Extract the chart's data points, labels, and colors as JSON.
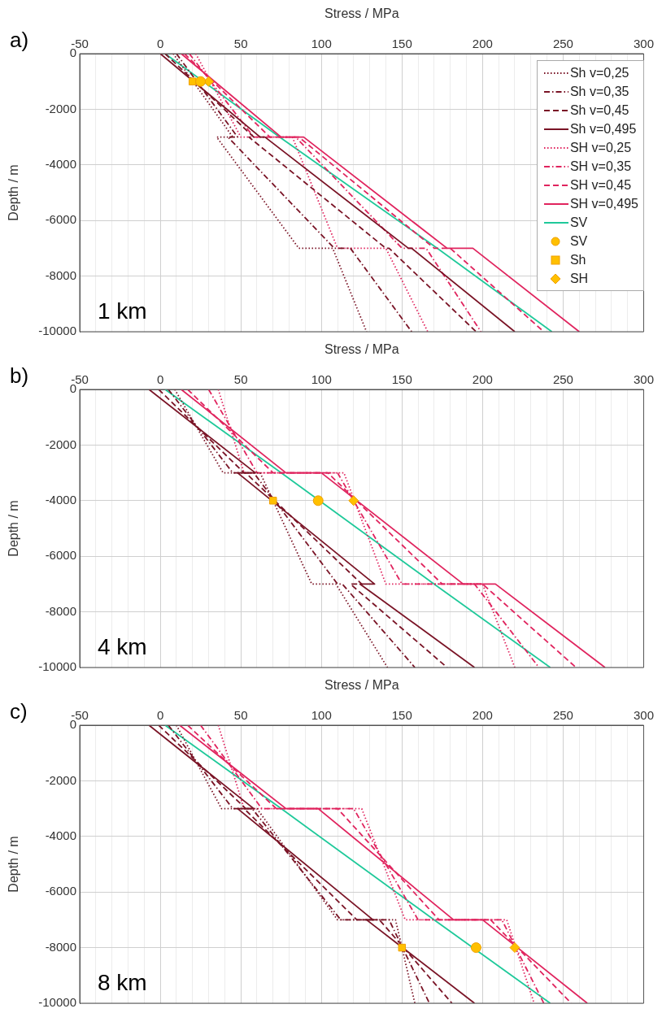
{
  "chart_data": [
    {
      "type": "line",
      "title": "a)",
      "xlabel": "Stress / MPa",
      "ylabel": "Depth / m",
      "annotations": [
        "1 km"
      ],
      "xlim": [
        -50,
        300
      ],
      "ylim": [
        -10000,
        0
      ],
      "xticks": [
        -50,
        {
          "value": -40,
          "label": null
        },
        {
          "value": -30,
          "label": null
        },
        {
          "value": -20,
          "label": null
        },
        {
          "value": -10,
          "label": null
        },
        0,
        {
          "value": 10,
          "label": null
        },
        {
          "value": 20,
          "label": null
        },
        {
          "value": 30,
          "label": null
        },
        {
          "value": 40,
          "label": null
        },
        50,
        {
          "value": 60,
          "label": null
        },
        {
          "value": 70,
          "label": null
        },
        {
          "value": 80,
          "label": null
        },
        {
          "value": 90,
          "label": null
        },
        100,
        {
          "value": 110,
          "label": null
        },
        {
          "value": 120,
          "label": null
        },
        {
          "value": 130,
          "label": null
        },
        {
          "value": 140,
          "label": null
        },
        150,
        {
          "value": 160,
          "label": null
        },
        {
          "value": 170,
          "label": null
        },
        {
          "value": 180,
          "label": null
        },
        {
          "value": 190,
          "label": null
        },
        200,
        {
          "value": 210,
          "label": null
        },
        {
          "value": 220,
          "label": null
        },
        {
          "value": 230,
          "label": null
        },
        {
          "value": 240,
          "label": null
        },
        250,
        {
          "value": 260,
          "label": null
        },
        {
          "value": 270,
          "label": null
        },
        {
          "value": 280,
          "label": null
        },
        {
          "value": 290,
          "label": null
        },
        300
      ],
      "yticks": [
        0,
        -2000,
        -4000,
        -6000,
        -8000,
        -10000
      ],
      "grid": true,
      "legend": "top right",
      "series": [
        {
          "name": "Sh v=0,25",
          "type": "line",
          "color": "#7a1426",
          "line_style": "dotted",
          "x": [
            8,
            45,
            35,
            86,
            107,
            128
          ],
          "values": [
            0,
            -3000,
            -3000,
            -7000,
            -7000,
            -10000
          ]
        },
        {
          "name": "Sh v=0,35",
          "type": "line",
          "color": "#7a1426",
          "line_style": "dashdot",
          "x": [
            10,
            48,
            42,
            108,
            118,
            156
          ],
          "values": [
            0,
            -3000,
            -3000,
            -7000,
            -7000,
            -10000
          ]
        },
        {
          "name": "Sh v=0,45",
          "type": "line",
          "color": "#7a1426",
          "line_style": "dashed",
          "x": [
            3,
            58,
            55,
            140,
            142,
            196
          ],
          "values": [
            0,
            -3000,
            -3000,
            -7000,
            -7000,
            -10000
          ]
        },
        {
          "name": "Sh v=0,495",
          "type": "line",
          "color": "#7a1426",
          "line_style": "solid",
          "x": [
            0,
            62,
            65,
            154,
            156,
            220
          ],
          "values": [
            0,
            -3000,
            -3000,
            -7000,
            -7000,
            -10000
          ]
        },
        {
          "name": "SH v=0,25",
          "type": "line",
          "color": "#e0245e",
          "line_style": "dotted",
          "x": [
            22,
            50,
            82,
            110,
            140,
            166
          ],
          "values": [
            0,
            -3000,
            -3000,
            -7000,
            -7000,
            -10000
          ]
        },
        {
          "name": "SH v=0,35",
          "type": "line",
          "color": "#e0245e",
          "line_style": "dashdot",
          "x": [
            18,
            58,
            84,
            150,
            165,
            199
          ],
          "values": [
            0,
            -3000,
            -3000,
            -7000,
            -7000,
            -10000
          ]
        },
        {
          "name": "SH v=0,45",
          "type": "line",
          "color": "#e0245e",
          "line_style": "dashed",
          "x": [
            15,
            68,
            86,
            170,
            180,
            238
          ],
          "values": [
            0,
            -3000,
            -3000,
            -7000,
            -7000,
            -10000
          ]
        },
        {
          "name": "SH v=0,495",
          "type": "line",
          "color": "#e0245e",
          "line_style": "solid",
          "x": [
            13,
            75,
            89,
            178,
            194,
            260
          ],
          "values": [
            0,
            -3000,
            -3000,
            -7000,
            -7000,
            -10000
          ]
        },
        {
          "name": "SV",
          "type": "line",
          "color": "#1fc99a",
          "line_style": "solid",
          "x": [
            3,
            74,
            172,
            243
          ],
          "values": [
            0,
            -3000,
            -7000,
            -10000
          ]
        },
        {
          "name": "SV",
          "type": "scatter",
          "color": "#ffc000",
          "marker": "circle",
          "x": [
            25
          ],
          "values": [
            -1000
          ]
        },
        {
          "name": "Sh",
          "type": "scatter",
          "color": "#ffc000",
          "marker": "square",
          "x": [
            20
          ],
          "values": [
            -1000
          ]
        },
        {
          "name": "SH",
          "type": "scatter",
          "color": "#ffc000",
          "marker": "diamond",
          "x": [
            30
          ],
          "values": [
            -1000
          ]
        }
      ]
    },
    {
      "type": "line",
      "title": "b)",
      "xlabel": "Stress / MPa",
      "ylabel": "Depth / m",
      "annotations": [
        "4 km"
      ],
      "xlim": [
        -50,
        300
      ],
      "ylim": [
        -10000,
        0
      ],
      "xticks": [
        -50,
        {
          "value": -40,
          "label": null
        },
        {
          "value": -30,
          "label": null
        },
        {
          "value": -20,
          "label": null
        },
        {
          "value": -10,
          "label": null
        },
        0,
        {
          "value": 10,
          "label": null
        },
        {
          "value": 20,
          "label": null
        },
        {
          "value": 30,
          "label": null
        },
        {
          "value": 40,
          "label": null
        },
        50,
        {
          "value": 60,
          "label": null
        },
        {
          "value": 70,
          "label": null
        },
        {
          "value": 80,
          "label": null
        },
        {
          "value": 90,
          "label": null
        },
        100,
        {
          "value": 110,
          "label": null
        },
        {
          "value": 120,
          "label": null
        },
        {
          "value": 130,
          "label": null
        },
        {
          "value": 140,
          "label": null
        },
        150,
        {
          "value": 160,
          "label": null
        },
        {
          "value": 170,
          "label": null
        },
        {
          "value": 180,
          "label": null
        },
        {
          "value": 190,
          "label": null
        },
        200,
        {
          "value": 210,
          "label": null
        },
        {
          "value": 220,
          "label": null
        },
        {
          "value": 230,
          "label": null
        },
        {
          "value": 240,
          "label": null
        },
        250,
        {
          "value": 260,
          "label": null
        },
        {
          "value": 270,
          "label": null
        },
        {
          "value": 280,
          "label": null
        },
        {
          "value": 290,
          "label": null
        },
        300
      ],
      "yticks": [
        0,
        -2000,
        -4000,
        -6000,
        -8000,
        -10000
      ],
      "grid": true,
      "series": [
        {
          "type": "line",
          "color": "#7a1426",
          "line_style": "dotted",
          "x": [
            9,
            39,
            62,
            94,
            109,
            141
          ],
          "values": [
            0,
            -3000,
            -3000,
            -7000,
            -7000,
            -10000
          ]
        },
        {
          "type": "line",
          "color": "#7a1426",
          "line_style": "dashdot",
          "x": [
            5,
            45,
            58,
            110,
            113,
            158
          ],
          "values": [
            0,
            -3000,
            -3000,
            -7000,
            -7000,
            -10000
          ]
        },
        {
          "type": "line",
          "color": "#7a1426",
          "line_style": "dashed",
          "x": [
            -1,
            52,
            53,
            125,
            118,
            178
          ],
          "values": [
            0,
            -3000,
            -3000,
            -7000,
            -7000,
            -10000
          ]
        },
        {
          "type": "line",
          "color": "#7a1426",
          "line_style": "solid",
          "x": [
            -7,
            59,
            48,
            133,
            124,
            195
          ],
          "values": [
            0,
            -3000,
            -3000,
            -7000,
            -7000,
            -10000
          ]
        },
        {
          "type": "line",
          "color": "#e0245e",
          "line_style": "dotted",
          "x": [
            36,
            52,
            114,
            140,
            200,
            220
          ],
          "values": [
            0,
            -3000,
            -3000,
            -7000,
            -7000,
            -10000
          ]
        },
        {
          "type": "line",
          "color": "#e0245e",
          "line_style": "dashdot",
          "x": [
            30,
            60,
            110,
            150,
            195,
            235
          ],
          "values": [
            0,
            -3000,
            -3000,
            -7000,
            -7000,
            -10000
          ]
        },
        {
          "type": "line",
          "color": "#e0245e",
          "line_style": "dashed",
          "x": [
            17,
            70,
            104,
            175,
            200,
            258
          ],
          "values": [
            0,
            -3000,
            -3000,
            -7000,
            -7000,
            -10000
          ]
        },
        {
          "type": "line",
          "color": "#e0245e",
          "line_style": "solid",
          "x": [
            13,
            78,
            100,
            188,
            208,
            276
          ],
          "values": [
            0,
            -3000,
            -3000,
            -7000,
            -7000,
            -10000
          ]
        },
        {
          "type": "line",
          "color": "#1fc99a",
          "line_style": "solid",
          "x": [
            3,
            75,
            170,
            242
          ],
          "values": [
            0,
            -3000,
            -7000,
            -10000
          ]
        },
        {
          "type": "scatter",
          "color": "#ffc000",
          "marker": "circle",
          "x": [
            98
          ],
          "values": [
            -4000
          ]
        },
        {
          "type": "scatter",
          "color": "#ffc000",
          "marker": "square",
          "x": [
            70
          ],
          "values": [
            -4000
          ]
        },
        {
          "type": "scatter",
          "color": "#ffc000",
          "marker": "diamond",
          "x": [
            120
          ],
          "values": [
            -4000
          ]
        }
      ]
    },
    {
      "type": "line",
      "title": "c)",
      "xlabel": "Stress / MPa",
      "ylabel": "Depth / m",
      "annotations": [
        "8 km"
      ],
      "xlim": [
        -50,
        300
      ],
      "ylim": [
        -10000,
        0
      ],
      "xticks": [
        -50,
        {
          "value": -40,
          "label": null
        },
        {
          "value": -30,
          "label": null
        },
        {
          "value": -20,
          "label": null
        },
        {
          "value": -10,
          "label": null
        },
        0,
        {
          "value": 10,
          "label": null
        },
        {
          "value": 20,
          "label": null
        },
        {
          "value": 30,
          "label": null
        },
        {
          "value": 40,
          "label": null
        },
        50,
        {
          "value": 60,
          "label": null
        },
        {
          "value": 70,
          "label": null
        },
        {
          "value": 80,
          "label": null
        },
        {
          "value": 90,
          "label": null
        },
        100,
        {
          "value": 110,
          "label": null
        },
        {
          "value": 120,
          "label": null
        },
        {
          "value": 130,
          "label": null
        },
        {
          "value": 140,
          "label": null
        },
        150,
        {
          "value": 160,
          "label": null
        },
        {
          "value": 170,
          "label": null
        },
        {
          "value": 180,
          "label": null
        },
        {
          "value": 190,
          "label": null
        },
        200,
        {
          "value": 210,
          "label": null
        },
        {
          "value": 220,
          "label": null
        },
        {
          "value": 230,
          "label": null
        },
        {
          "value": 240,
          "label": null
        },
        250,
        {
          "value": 260,
          "label": null
        },
        {
          "value": 270,
          "label": null
        },
        {
          "value": 280,
          "label": null
        },
        {
          "value": 290,
          "label": null
        },
        300
      ],
      "yticks": [
        0,
        -2000,
        -4000,
        -6000,
        -8000,
        -10000
      ],
      "grid": true,
      "series": [
        {
          "type": "line",
          "color": "#7a1426",
          "line_style": "dotted",
          "x": [
            10,
            38,
            60,
            110,
            146,
            158
          ],
          "values": [
            0,
            -3000,
            -3000,
            -7000,
            -7000,
            -10000
          ]
        },
        {
          "type": "line",
          "color": "#7a1426",
          "line_style": "dashdot",
          "x": [
            5,
            45,
            57,
            112,
            142,
            167
          ],
          "values": [
            0,
            -3000,
            -3000,
            -7000,
            -7000,
            -10000
          ]
        },
        {
          "type": "line",
          "color": "#7a1426",
          "line_style": "dashed",
          "x": [
            -1,
            53,
            52,
            122,
            136,
            181
          ],
          "values": [
            0,
            -3000,
            -3000,
            -7000,
            -7000,
            -10000
          ]
        },
        {
          "type": "line",
          "color": "#7a1426",
          "line_style": "solid",
          "x": [
            -7,
            58,
            48,
            132,
            128,
            195
          ],
          "values": [
            0,
            -3000,
            -3000,
            -7000,
            -7000,
            -10000
          ]
        },
        {
          "type": "line",
          "color": "#e0245e",
          "line_style": "dotted",
          "x": [
            36,
            52,
            125,
            152,
            215,
            232
          ],
          "values": [
            0,
            -3000,
            -3000,
            -7000,
            -7000,
            -10000
          ]
        },
        {
          "type": "line",
          "color": "#e0245e",
          "line_style": "dashdot",
          "x": [
            25,
            63,
            120,
            160,
            212,
            238
          ],
          "values": [
            0,
            -3000,
            -3000,
            -7000,
            -7000,
            -10000
          ]
        },
        {
          "type": "line",
          "color": "#e0245e",
          "line_style": "dashed",
          "x": [
            17,
            72,
            110,
            173,
            205,
            255
          ],
          "values": [
            0,
            -3000,
            -3000,
            -7000,
            -7000,
            -10000
          ]
        },
        {
          "type": "line",
          "color": "#e0245e",
          "line_style": "solid",
          "x": [
            12,
            78,
            98,
            182,
            200,
            265
          ],
          "values": [
            0,
            -3000,
            -3000,
            -7000,
            -7000,
            -10000
          ]
        },
        {
          "type": "line",
          "color": "#1fc99a",
          "line_style": "solid",
          "x": [
            3,
            75,
            170,
            242
          ],
          "values": [
            0,
            -3000,
            -7000,
            -10000
          ]
        },
        {
          "type": "scatter",
          "color": "#ffc000",
          "marker": "circle",
          "x": [
            196
          ],
          "values": [
            -8000
          ]
        },
        {
          "type": "scatter",
          "color": "#ffc000",
          "marker": "square",
          "x": [
            150
          ],
          "values": [
            -8000
          ]
        },
        {
          "type": "scatter",
          "color": "#ffc000",
          "marker": "diamond",
          "x": [
            220
          ],
          "values": [
            -8000
          ]
        }
      ]
    }
  ]
}
